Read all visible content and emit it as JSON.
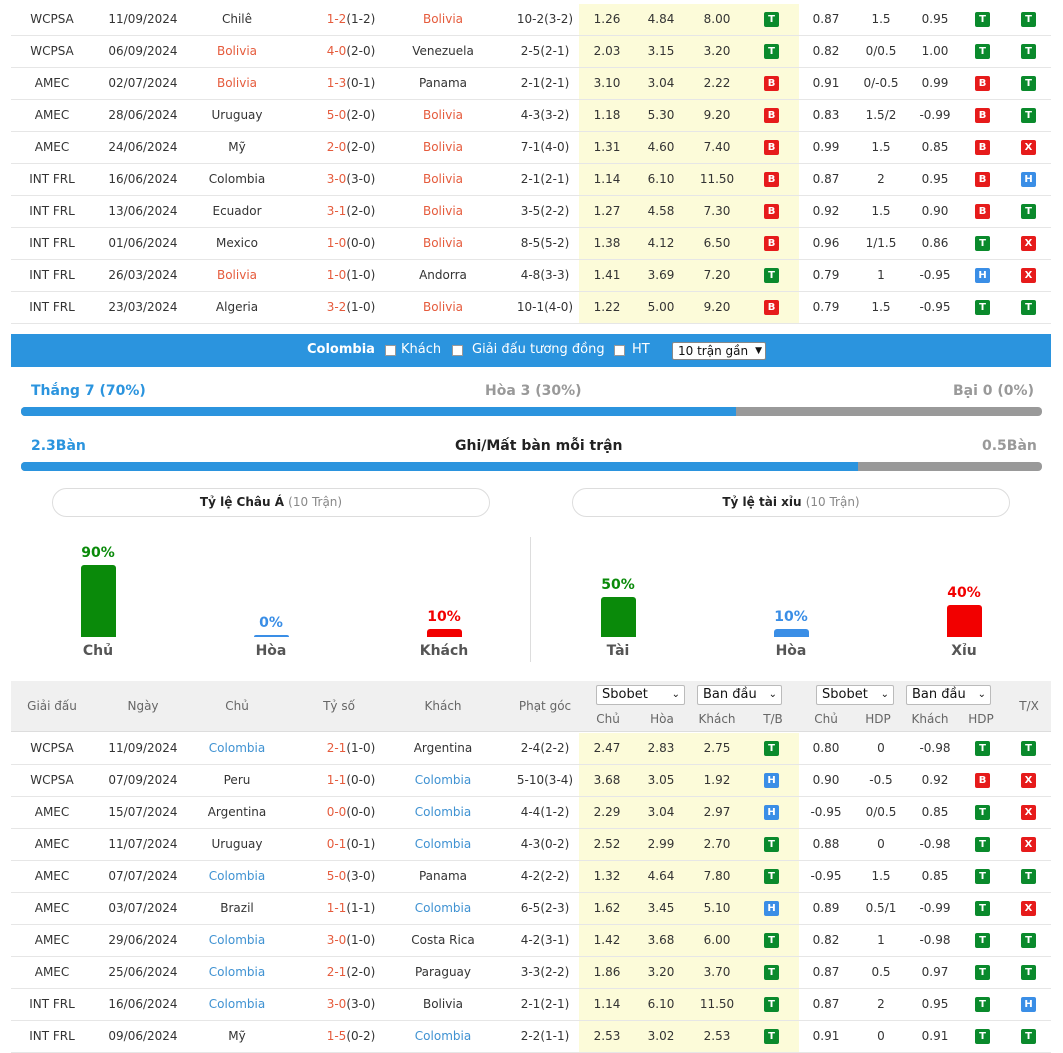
{
  "top_rows": [
    {
      "league": "WCPSA",
      "date": "11/09/2024",
      "home": "Chilê",
      "home_c": "",
      "score": "1-2",
      "half": "(1-2)",
      "away": "Bolivia",
      "away_c": "red",
      "corner": "10-2(3-2)",
      "o1": "1.26",
      "o2": "4.84",
      "o3": "8.00",
      "r1": "T",
      "h1": "0.87",
      "h2": "1.5",
      "h3": "0.95",
      "r2": "T",
      "r3": "T"
    },
    {
      "league": "WCPSA",
      "date": "06/09/2024",
      "home": "Bolivia",
      "home_c": "red",
      "score": "4-0",
      "half": "(2-0)",
      "away": "Venezuela",
      "away_c": "",
      "corner": "2-5(2-1)",
      "o1": "2.03",
      "o2": "3.15",
      "o3": "3.20",
      "r1": "T",
      "h1": "0.82",
      "h2": "0/0.5",
      "h3": "1.00",
      "r2": "T",
      "r3": "T"
    },
    {
      "league": "AMEC",
      "date": "02/07/2024",
      "home": "Bolivia",
      "home_c": "red",
      "score": "1-3",
      "half": "(0-1)",
      "away": "Panama",
      "away_c": "",
      "corner": "2-1(2-1)",
      "o1": "3.10",
      "o2": "3.04",
      "o3": "2.22",
      "r1": "B",
      "h1": "0.91",
      "h2": "0/-0.5",
      "h3": "0.99",
      "r2": "B",
      "r3": "T"
    },
    {
      "league": "AMEC",
      "date": "28/06/2024",
      "home": "Uruguay",
      "home_c": "",
      "score": "5-0",
      "half": "(2-0)",
      "away": "Bolivia",
      "away_c": "red",
      "corner": "4-3(3-2)",
      "o1": "1.18",
      "o2": "5.30",
      "o3": "9.20",
      "r1": "B",
      "h1": "0.83",
      "h2": "1.5/2",
      "h3": "-0.99",
      "r2": "B",
      "r3": "T"
    },
    {
      "league": "AMEC",
      "date": "24/06/2024",
      "home": "Mỹ",
      "home_c": "",
      "score": "2-0",
      "half": "(2-0)",
      "away": "Bolivia",
      "away_c": "red",
      "corner": "7-1(4-0)",
      "o1": "1.31",
      "o2": "4.60",
      "o3": "7.40",
      "r1": "B",
      "h1": "0.99",
      "h2": "1.5",
      "h3": "0.85",
      "r2": "B",
      "r3": "X"
    },
    {
      "league": "INT FRL",
      "date": "16/06/2024",
      "home": "Colombia",
      "home_c": "",
      "score": "3-0",
      "half": "(3-0)",
      "away": "Bolivia",
      "away_c": "red",
      "corner": "2-1(2-1)",
      "o1": "1.14",
      "o2": "6.10",
      "o3": "11.50",
      "r1": "B",
      "h1": "0.87",
      "h2": "2",
      "h3": "0.95",
      "r2": "B",
      "r3": "H"
    },
    {
      "league": "INT FRL",
      "date": "13/06/2024",
      "home": "Ecuador",
      "home_c": "",
      "score": "3-1",
      "half": "(2-0)",
      "away": "Bolivia",
      "away_c": "red",
      "corner": "3-5(2-2)",
      "o1": "1.27",
      "o2": "4.58",
      "o3": "7.30",
      "r1": "B",
      "h1": "0.92",
      "h2": "1.5",
      "h3": "0.90",
      "r2": "B",
      "r3": "T"
    },
    {
      "league": "INT FRL",
      "date": "01/06/2024",
      "home": "Mexico",
      "home_c": "",
      "score": "1-0",
      "half": "(0-0)",
      "away": "Bolivia",
      "away_c": "red",
      "corner": "8-5(5-2)",
      "o1": "1.38",
      "o2": "4.12",
      "o3": "6.50",
      "r1": "B",
      "h1": "0.96",
      "h2": "1/1.5",
      "h3": "0.86",
      "r2": "T",
      "r3": "X"
    },
    {
      "league": "INT FRL",
      "date": "26/03/2024",
      "home": "Bolivia",
      "home_c": "red",
      "score": "1-0",
      "half": "(1-0)",
      "away": "Andorra",
      "away_c": "",
      "corner": "4-8(3-3)",
      "o1": "1.41",
      "o2": "3.69",
      "o3": "7.20",
      "r1": "T",
      "h1": "0.79",
      "h2": "1",
      "h3": "-0.95",
      "r2": "H",
      "r3": "X"
    },
    {
      "league": "INT FRL",
      "date": "23/03/2024",
      "home": "Algeria",
      "home_c": "",
      "score": "3-2",
      "half": "(1-0)",
      "away": "Bolivia",
      "away_c": "red",
      "corner": "10-1(4-0)",
      "o1": "1.22",
      "o2": "5.00",
      "o3": "9.20",
      "r1": "B",
      "h1": "0.79",
      "h2": "1.5",
      "h3": "-0.95",
      "r2": "T",
      "r3": "T"
    }
  ],
  "filter": {
    "team": "Colombia",
    "away_label": "Khách",
    "same_league_label": "Giải đấu tương đồng",
    "ht_label": "HT",
    "select_value": "10 trận gần"
  },
  "stats": {
    "win": "Thắng 7 (70%)",
    "draw": "Hòa 3 (30%)",
    "lose": "Bại 0 (0%)",
    "win_fraction": 0.7,
    "goals_for": "2.3Bàn",
    "goals_title": "Ghi/Mất bàn mỗi trận",
    "goals_against": "0.5Bàn",
    "goals_fraction": 0.82
  },
  "asian": {
    "title": "Tỷ lệ Châu Á",
    "sub": "(10 Trận)",
    "items": [
      {
        "label": "Chủ",
        "pct": "90%",
        "value": 0.9,
        "color": "#0a8a0a"
      },
      {
        "label": "Hòa",
        "pct": "0%",
        "value": 0.0,
        "color": "#3a8ee6"
      },
      {
        "label": "Khách",
        "pct": "10%",
        "value": 0.1,
        "color": "#f20000"
      }
    ]
  },
  "ou": {
    "title": "Tỷ lệ tài xỉu",
    "sub": "(10 Trận)",
    "items": [
      {
        "label": "Tài",
        "pct": "50%",
        "value": 0.5,
        "color": "#0a8a0a"
      },
      {
        "label": "Hòa",
        "pct": "10%",
        "value": 0.1,
        "color": "#3a8ee6"
      },
      {
        "label": "Xỉu",
        "pct": "40%",
        "value": 0.4,
        "color": "#f20000"
      }
    ]
  },
  "header": {
    "league": "Giải đấu",
    "date": "Ngày",
    "home": "Chủ",
    "score": "Tỷ số",
    "away": "Khách",
    "corner": "Phạt góc",
    "book1": "Sbobet",
    "odd1": "Ban đầu",
    "book2": "Sbobet",
    "odd2": "Ban đầu",
    "c_home": "Chủ",
    "c_draw": "Hòa",
    "c_away": "Khách",
    "c_tb": "T/B",
    "c_home2": "Chủ",
    "c_hdp": "HDP",
    "c_away2": "Khách",
    "c_hdp2": "HDP",
    "c_tx": "T/X"
  },
  "bottom_rows": [
    {
      "league": "WCPSA",
      "date": "11/09/2024",
      "home": "Colombia",
      "home_c": "blue",
      "score": "2-1",
      "half": "(1-0)",
      "away": "Argentina",
      "away_c": "",
      "corner": "2-4(2-2)",
      "o1": "2.47",
      "o2": "2.83",
      "o3": "2.75",
      "r1": "T",
      "h1": "0.80",
      "h2": "0",
      "h3": "-0.98",
      "r2": "T",
      "r3": "T"
    },
    {
      "league": "WCPSA",
      "date": "07/09/2024",
      "home": "Peru",
      "home_c": "",
      "score": "1-1",
      "half": "(0-0)",
      "away": "Colombia",
      "away_c": "blue",
      "corner": "5-10(3-4)",
      "o1": "3.68",
      "o2": "3.05",
      "o3": "1.92",
      "r1": "H",
      "h1": "0.90",
      "h2": "-0.5",
      "h3": "0.92",
      "r2": "B",
      "r3": "X"
    },
    {
      "league": "AMEC",
      "date": "15/07/2024",
      "home": "Argentina",
      "home_c": "",
      "score": "0-0",
      "half": "(0-0)",
      "away": "Colombia",
      "away_c": "blue",
      "corner": "4-4(1-2)",
      "o1": "2.29",
      "o2": "3.04",
      "o3": "2.97",
      "r1": "H",
      "h1": "-0.95",
      "h2": "0/0.5",
      "h3": "0.85",
      "r2": "T",
      "r3": "X"
    },
    {
      "league": "AMEC",
      "date": "11/07/2024",
      "home": "Uruguay",
      "home_c": "",
      "score": "0-1",
      "half": "(0-1)",
      "away": "Colombia",
      "away_c": "blue",
      "corner": "4-3(0-2)",
      "o1": "2.52",
      "o2": "2.99",
      "o3": "2.70",
      "r1": "T",
      "h1": "0.88",
      "h2": "0",
      "h3": "-0.98",
      "r2": "T",
      "r3": "X"
    },
    {
      "league": "AMEC",
      "date": "07/07/2024",
      "home": "Colombia",
      "home_c": "blue",
      "score": "5-0",
      "half": "(3-0)",
      "away": "Panama",
      "away_c": "",
      "corner": "4-2(2-2)",
      "o1": "1.32",
      "o2": "4.64",
      "o3": "7.80",
      "r1": "T",
      "h1": "-0.95",
      "h2": "1.5",
      "h3": "0.85",
      "r2": "T",
      "r3": "T"
    },
    {
      "league": "AMEC",
      "date": "03/07/2024",
      "home": "Brazil",
      "home_c": "",
      "score": "1-1",
      "half": "(1-1)",
      "away": "Colombia",
      "away_c": "blue",
      "corner": "6-5(2-3)",
      "o1": "1.62",
      "o2": "3.45",
      "o3": "5.10",
      "r1": "H",
      "h1": "0.89",
      "h2": "0.5/1",
      "h3": "-0.99",
      "r2": "T",
      "r3": "X"
    },
    {
      "league": "AMEC",
      "date": "29/06/2024",
      "home": "Colombia",
      "home_c": "blue",
      "score": "3-0",
      "half": "(1-0)",
      "away": "Costa Rica",
      "away_c": "",
      "corner": "4-2(3-1)",
      "o1": "1.42",
      "o2": "3.68",
      "o3": "6.00",
      "r1": "T",
      "h1": "0.82",
      "h2": "1",
      "h3": "-0.98",
      "r2": "T",
      "r3": "T"
    },
    {
      "league": "AMEC",
      "date": "25/06/2024",
      "home": "Colombia",
      "home_c": "blue",
      "score": "2-1",
      "half": "(2-0)",
      "away": "Paraguay",
      "away_c": "",
      "corner": "3-3(2-2)",
      "o1": "1.86",
      "o2": "3.20",
      "o3": "3.70",
      "r1": "T",
      "h1": "0.87",
      "h2": "0.5",
      "h3": "0.97",
      "r2": "T",
      "r3": "T"
    },
    {
      "league": "INT FRL",
      "date": "16/06/2024",
      "home": "Colombia",
      "home_c": "blue",
      "score": "3-0",
      "half": "(3-0)",
      "away": "Bolivia",
      "away_c": "",
      "corner": "2-1(2-1)",
      "o1": "1.14",
      "o2": "6.10",
      "o3": "11.50",
      "r1": "T",
      "h1": "0.87",
      "h2": "2",
      "h3": "0.95",
      "r2": "T",
      "r3": "H"
    },
    {
      "league": "INT FRL",
      "date": "09/06/2024",
      "home": "Mỹ",
      "home_c": "",
      "score": "1-5",
      "half": "(0-2)",
      "away": "Colombia",
      "away_c": "blue",
      "corner": "2-2(1-1)",
      "o1": "2.53",
      "o2": "3.02",
      "o3": "2.53",
      "r1": "T",
      "h1": "0.91",
      "h2": "0",
      "h3": "0.91",
      "r2": "T",
      "r3": "T"
    }
  ]
}
